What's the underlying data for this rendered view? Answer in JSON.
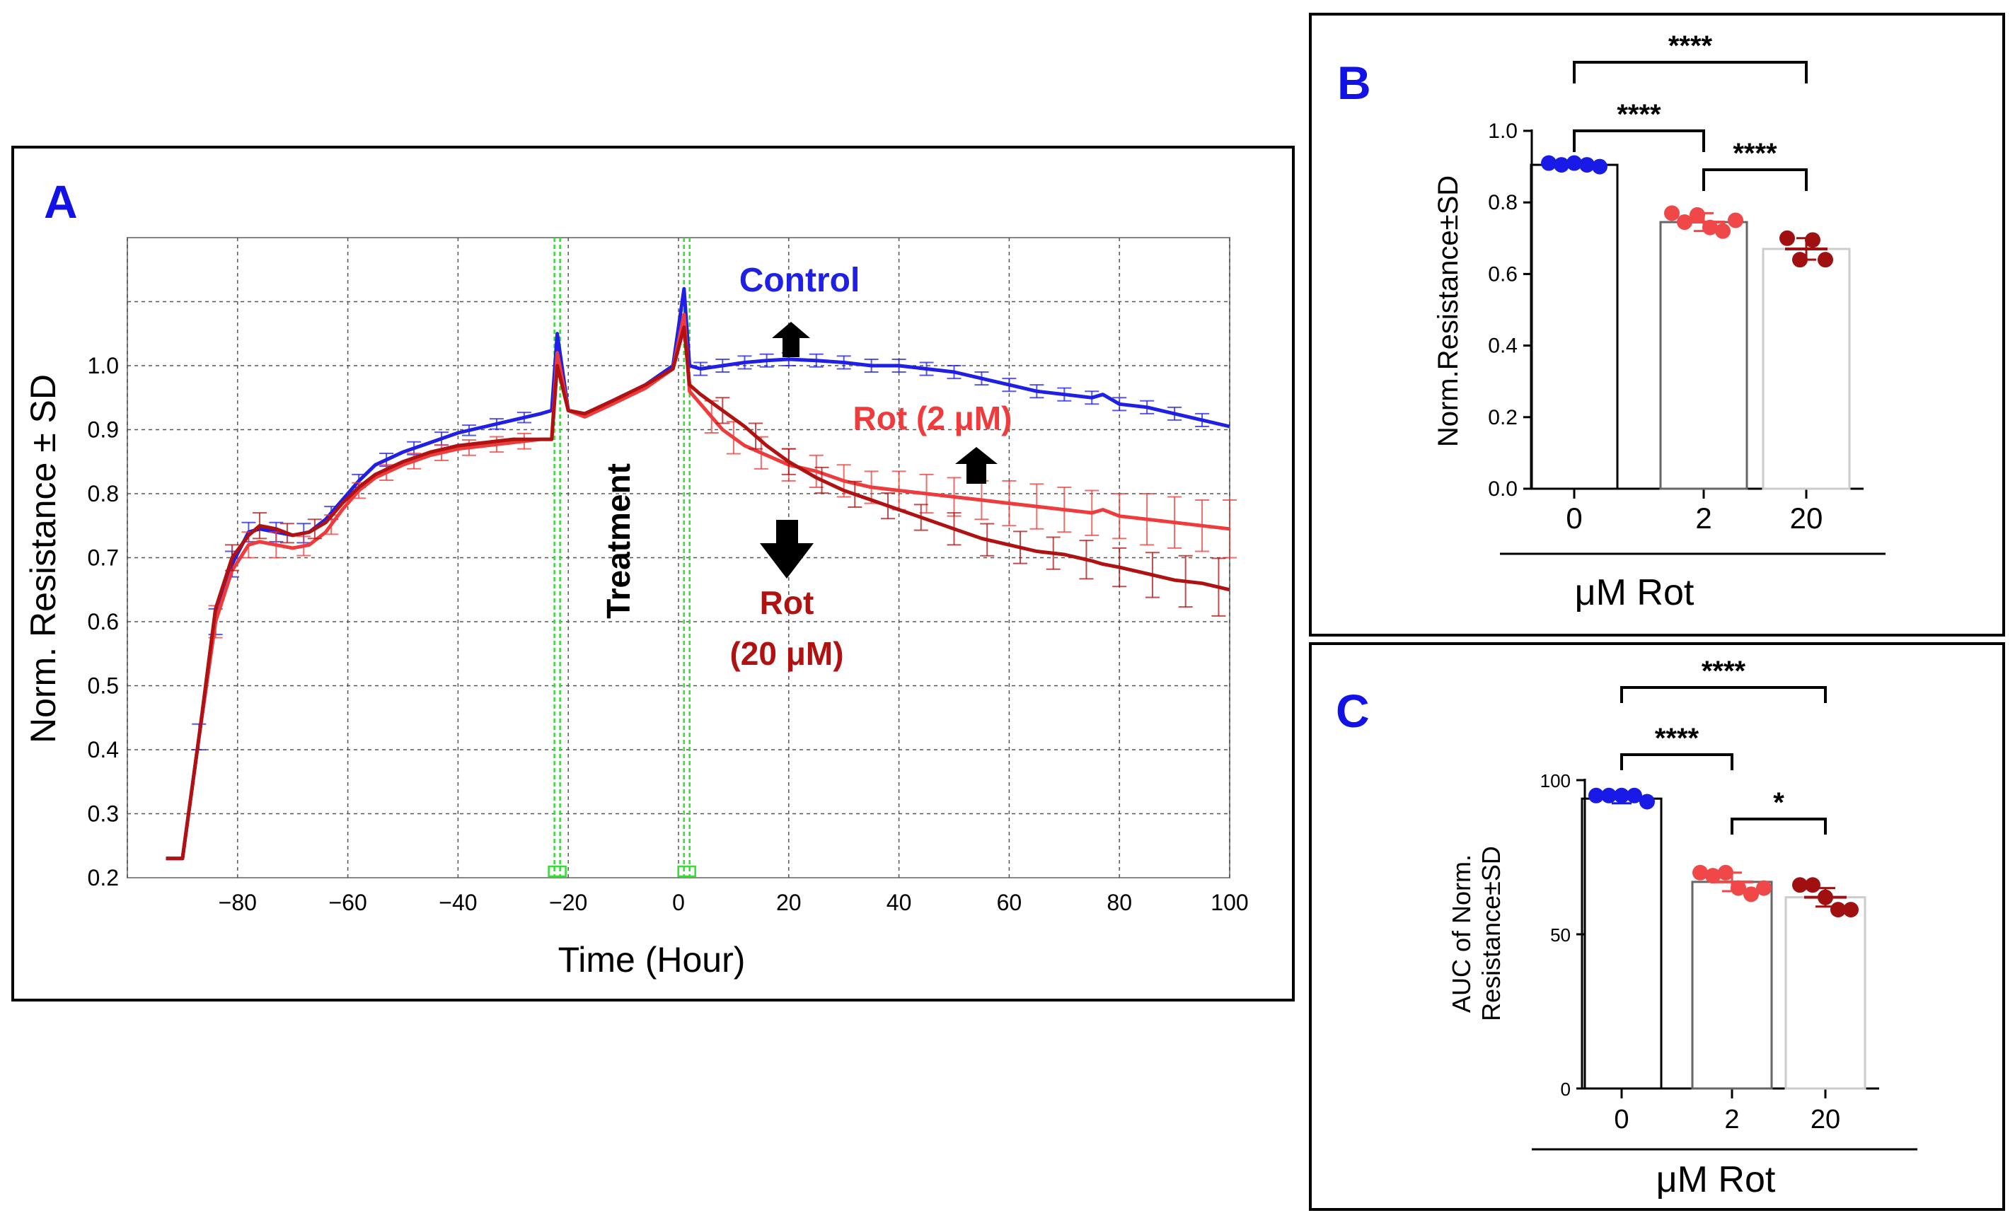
{
  "colors": {
    "control": "#1f1fe6",
    "rot2": "#ef3b3b",
    "rot20": "#b01212",
    "rot20_label": "#b01212",
    "panel_letter": "#1212e6",
    "grid": "#555555",
    "green": "#33dd33",
    "dot_control": "#1a1ae6",
    "dot_rot2": "#f04848",
    "dot_rot20": "#a01010"
  },
  "chart_data": [
    {
      "panel": "A",
      "type": "line",
      "panel_label": "A",
      "xlabel": "Time (Hour)",
      "ylabel": "Norm. Resistance ± SD",
      "xlim": [
        -100,
        100
      ],
      "ylim": [
        0.2,
        1.2
      ],
      "xticks": [
        -80,
        -60,
        -40,
        -20,
        0,
        20,
        40,
        60,
        80,
        100
      ],
      "xtick_labels": [
        "−80",
        "−60",
        "−40",
        "−20",
        "0",
        "20",
        "40",
        "60",
        "80",
        "100"
      ],
      "yticks": [
        0.2,
        0.3,
        0.4,
        0.5,
        0.6,
        0.7,
        0.8,
        0.9,
        1.0
      ],
      "ytick_labels": [
        "0.2",
        "0.3",
        "0.4",
        "0.5",
        "0.6",
        "0.7",
        "0.8",
        "0.9",
        "1.0"
      ],
      "grid": true,
      "vertical_markers": [
        -22,
        1.5
      ],
      "annotation_treatment": "Treatment",
      "labels": {
        "control": "Control",
        "rot2": "Rot (2 μM)",
        "rot20_line1": "Rot",
        "rot20_line2": "(20 μM)"
      },
      "series": [
        {
          "name": "Control",
          "color_key": "control",
          "x": [
            -93,
            -90,
            -87,
            -84,
            -81,
            -78,
            -76,
            -73,
            -70,
            -67,
            -64,
            -61,
            -58,
            -55,
            -50,
            -45,
            -40,
            -35,
            -30,
            -25,
            -23,
            -22,
            -20,
            -17,
            -12,
            -6,
            -1,
            1,
            2,
            4,
            8,
            12,
            16,
            20,
            25,
            30,
            35,
            40,
            45,
            50,
            55,
            60,
            65,
            70,
            75,
            77,
            80,
            85,
            90,
            95,
            100
          ],
          "y": [
            0.23,
            0.23,
            0.42,
            0.6,
            0.69,
            0.74,
            0.745,
            0.74,
            0.735,
            0.74,
            0.76,
            0.79,
            0.82,
            0.845,
            0.865,
            0.88,
            0.895,
            0.905,
            0.915,
            0.925,
            0.93,
            1.05,
            0.93,
            0.925,
            0.945,
            0.97,
            1.0,
            1.12,
            1.0,
            0.995,
            1.0,
            1.005,
            1.008,
            1.01,
            1.008,
            1.005,
            1.0,
            1.0,
            0.995,
            0.99,
            0.98,
            0.97,
            0.96,
            0.955,
            0.95,
            0.955,
            0.94,
            0.935,
            0.925,
            0.915,
            0.905
          ],
          "error_x": [
            -87,
            -84,
            -81,
            -78,
            -73,
            -68,
            -63,
            -58,
            -53,
            -48,
            -43,
            -38,
            -33,
            -28,
            4,
            8,
            12,
            16,
            20,
            25,
            30,
            35,
            40,
            45,
            50,
            55,
            60,
            65,
            70,
            75,
            80,
            85,
            90,
            95
          ],
          "error_sd": [
            0.02,
            0.02,
            0.02,
            0.015,
            0.015,
            0.015,
            0.01,
            0.01,
            0.01,
            0.01,
            0.01,
            0.008,
            0.008,
            0.008,
            0.01,
            0.01,
            0.01,
            0.01,
            0.01,
            0.01,
            0.01,
            0.01,
            0.01,
            0.01,
            0.01,
            0.01,
            0.01,
            0.01,
            0.01,
            0.01,
            0.01,
            0.01,
            0.01,
            0.01
          ]
        },
        {
          "name": "Rot (2 μM)",
          "color_key": "rot2",
          "x": [
            -93,
            -90,
            -87,
            -84,
            -81,
            -78,
            -76,
            -73,
            -70,
            -67,
            -64,
            -61,
            -58,
            -55,
            -50,
            -45,
            -40,
            -35,
            -30,
            -25,
            -23,
            -22,
            -20,
            -17,
            -12,
            -6,
            -1,
            1,
            2,
            4,
            8,
            12,
            16,
            20,
            25,
            30,
            35,
            40,
            45,
            50,
            55,
            60,
            65,
            70,
            75,
            77,
            80,
            85,
            90,
            95,
            100
          ],
          "y": [
            0.23,
            0.23,
            0.42,
            0.6,
            0.68,
            0.72,
            0.725,
            0.72,
            0.715,
            0.72,
            0.74,
            0.775,
            0.805,
            0.825,
            0.845,
            0.86,
            0.87,
            0.875,
            0.88,
            0.885,
            0.885,
            1.02,
            0.93,
            0.92,
            0.94,
            0.965,
            0.995,
            1.08,
            0.96,
            0.94,
            0.9,
            0.875,
            0.86,
            0.845,
            0.835,
            0.82,
            0.81,
            0.805,
            0.8,
            0.795,
            0.79,
            0.785,
            0.78,
            0.775,
            0.77,
            0.775,
            0.765,
            0.76,
            0.755,
            0.75,
            0.745
          ],
          "error_x": [
            -84,
            -78,
            -73,
            -68,
            -63,
            -58,
            -53,
            -48,
            -43,
            -38,
            -33,
            -28,
            6,
            10,
            15,
            20,
            25,
            30,
            35,
            40,
            45,
            50,
            55,
            60,
            65,
            70,
            75,
            80,
            85,
            90,
            95,
            100
          ],
          "error_sd": [
            0.025,
            0.02,
            0.02,
            0.015,
            0.015,
            0.012,
            0.012,
            0.012,
            0.012,
            0.012,
            0.012,
            0.012,
            0.025,
            0.025,
            0.025,
            0.025,
            0.025,
            0.025,
            0.025,
            0.03,
            0.03,
            0.03,
            0.03,
            0.035,
            0.035,
            0.035,
            0.035,
            0.035,
            0.04,
            0.04,
            0.04,
            0.045
          ]
        },
        {
          "name": "Rot (20 μM)",
          "color_key": "rot20",
          "x": [
            -93,
            -90,
            -87,
            -84,
            -81,
            -78,
            -76,
            -73,
            -70,
            -67,
            -64,
            -61,
            -58,
            -55,
            -50,
            -45,
            -40,
            -35,
            -30,
            -25,
            -23,
            -22,
            -20,
            -17,
            -12,
            -6,
            -1,
            1,
            2,
            4,
            8,
            12,
            16,
            20,
            25,
            30,
            35,
            40,
            45,
            50,
            55,
            60,
            65,
            70,
            75,
            77,
            80,
            85,
            90,
            95,
            100
          ],
          "y": [
            0.23,
            0.23,
            0.42,
            0.62,
            0.7,
            0.735,
            0.75,
            0.745,
            0.735,
            0.74,
            0.755,
            0.785,
            0.81,
            0.83,
            0.85,
            0.865,
            0.875,
            0.88,
            0.885,
            0.885,
            0.885,
            1.0,
            0.93,
            0.925,
            0.945,
            0.97,
            0.995,
            1.06,
            0.97,
            0.955,
            0.93,
            0.905,
            0.875,
            0.85,
            0.825,
            0.805,
            0.79,
            0.775,
            0.76,
            0.745,
            0.73,
            0.72,
            0.71,
            0.705,
            0.695,
            0.69,
            0.685,
            0.675,
            0.665,
            0.66,
            0.65
          ],
          "error_x": [
            -81,
            -76,
            -71,
            -66,
            8,
            14,
            20,
            26,
            32,
            38,
            44,
            50,
            56,
            62,
            68,
            74,
            80,
            86,
            92,
            98
          ],
          "error_sd": [
            0.02,
            0.02,
            0.015,
            0.015,
            0.02,
            0.02,
            0.02,
            0.02,
            0.02,
            0.02,
            0.02,
            0.025,
            0.025,
            0.025,
            0.025,
            0.03,
            0.03,
            0.035,
            0.04,
            0.045
          ]
        }
      ]
    },
    {
      "panel": "B",
      "type": "bar",
      "panel_label": "B",
      "categories": [
        "0",
        "2",
        "20"
      ],
      "values": [
        0.905,
        0.745,
        0.67
      ],
      "sd": [
        0.005,
        0.025,
        0.03
      ],
      "points": [
        [
          0.91,
          0.905,
          0.91,
          0.905,
          0.9
        ],
        [
          0.77,
          0.745,
          0.765,
          0.73,
          0.72,
          0.75
        ],
        [
          0.7,
          0.64,
          0.695,
          0.64
        ]
      ],
      "ylabel": "Norm.Resistance±SD",
      "xlabel": "μM Rot",
      "ylim": [
        0,
        1.0
      ],
      "yticks": [
        0.0,
        0.2,
        0.4,
        0.6,
        0.8,
        1.0
      ],
      "ytick_labels": [
        "0.0",
        "0.2",
        "0.4",
        "0.6",
        "0.8",
        "1.0"
      ],
      "significance": [
        {
          "from": 0,
          "to": 2,
          "label": "****"
        },
        {
          "from": 0,
          "to": 1,
          "label": "****"
        },
        {
          "from": 1,
          "to": 2,
          "label": "****"
        }
      ]
    },
    {
      "panel": "C",
      "type": "bar",
      "panel_label": "C",
      "categories": [
        "0",
        "2",
        "20"
      ],
      "values": [
        94,
        67,
        62
      ],
      "sd": [
        1.5,
        3,
        3
      ],
      "points": [
        [
          95,
          95,
          95,
          95,
          93
        ],
        [
          70,
          69,
          70,
          65,
          63,
          65
        ],
        [
          66,
          66,
          62,
          58,
          58
        ]
      ],
      "ylabel_line1": "AUC of Norm.",
      "ylabel_line2": "Resistance±SD",
      "xlabel": "μM Rot",
      "ylim": [
        0,
        100
      ],
      "yticks": [
        0,
        50,
        100
      ],
      "ytick_labels": [
        "0",
        "50",
        "100"
      ],
      "significance": [
        {
          "from": 0,
          "to": 2,
          "label": "****"
        },
        {
          "from": 0,
          "to": 1,
          "label": "****"
        },
        {
          "from": 1,
          "to": 2,
          "label": "*"
        }
      ]
    }
  ]
}
